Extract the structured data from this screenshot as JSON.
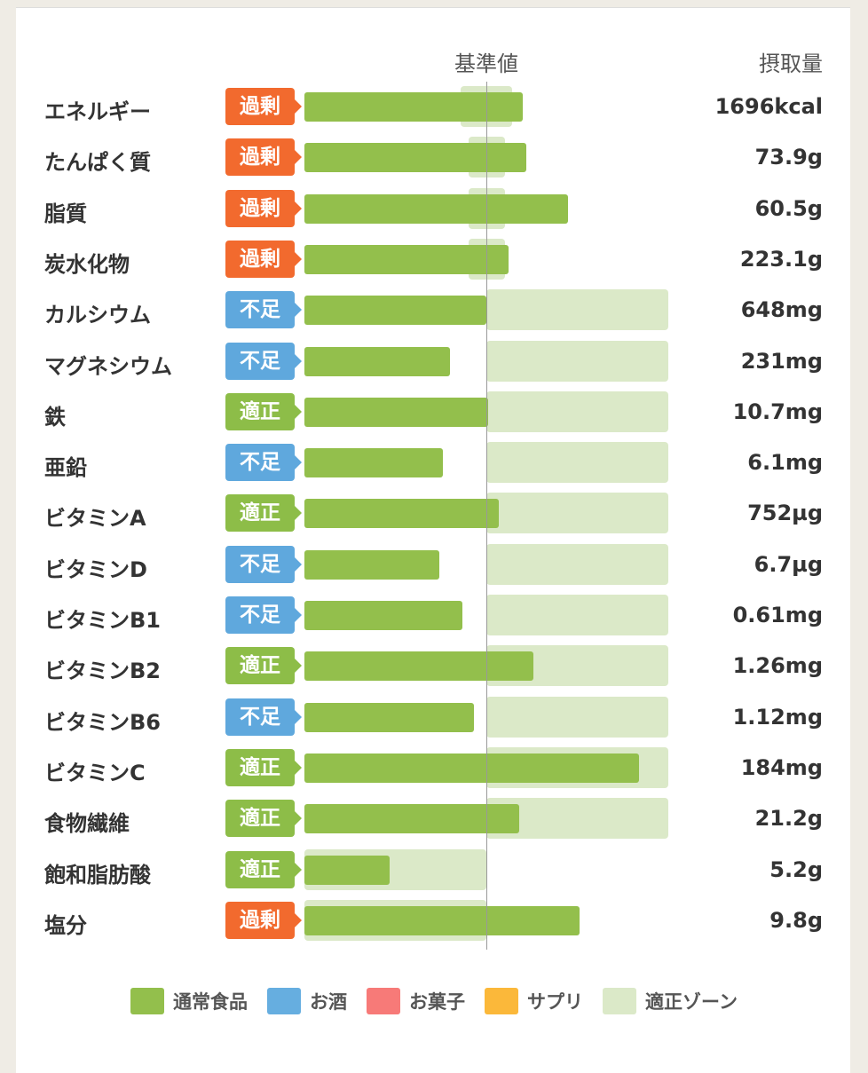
{
  "chart_data": {
    "type": "bar",
    "orientation": "horizontal",
    "unit": "percent of reference value",
    "reference_label": "基準値",
    "value_header": "摂取量",
    "reference_percent": 100,
    "xlim": [
      0,
      200
    ],
    "categories": [
      "エネルギー",
      "たんぱく質",
      "脂質",
      "炭水化物",
      "カルシウム",
      "マグネシウム",
      "鉄",
      "亜鉛",
      "ビタミンA",
      "ビタミンD",
      "ビタミンB1",
      "ビタミンB2",
      "ビタミンB6",
      "ビタミンC",
      "食物繊維",
      "飽和脂肪酸",
      "塩分"
    ],
    "status": [
      "過剰",
      "過剰",
      "過剰",
      "過剰",
      "不足",
      "不足",
      "適正",
      "不足",
      "適正",
      "不足",
      "不足",
      "適正",
      "不足",
      "適正",
      "適正",
      "適正",
      "過剰"
    ],
    "intake_labels": [
      "1696kcal",
      "73.9g",
      "60.5g",
      "223.1g",
      "648mg",
      "231mg",
      "10.7mg",
      "6.1mg",
      "752µg",
      "6.7µg",
      "0.61mg",
      "1.26mg",
      "1.12mg",
      "184mg",
      "21.2g",
      "5.2g",
      "9.8g"
    ],
    "series": [
      {
        "name": "通常食品",
        "color": "#93bf4c",
        "values": [
          120,
          122,
          145,
          112,
          100,
          80,
          101,
          76,
          107,
          74,
          87,
          126,
          93,
          184,
          118,
          47,
          151
        ]
      }
    ],
    "zones": [
      [
        86,
        114
      ],
      [
        90,
        110
      ],
      [
        90,
        110
      ],
      [
        90,
        110
      ],
      [
        100,
        200
      ],
      [
        100,
        200
      ],
      [
        100,
        200
      ],
      [
        100,
        200
      ],
      [
        100,
        200
      ],
      [
        100,
        200
      ],
      [
        100,
        200
      ],
      [
        100,
        200
      ],
      [
        100,
        200
      ],
      [
        100,
        200
      ],
      [
        100,
        200
      ],
      [
        0,
        100
      ],
      [
        0,
        100
      ]
    ],
    "status_colors": {
      "過剰": "#f26a2e",
      "不足": "#5fa8dd",
      "適正": "#8dbd48"
    },
    "legend": [
      {
        "label": "通常食品",
        "color": "#93bf4c"
      },
      {
        "label": "お酒",
        "color": "#66aee0"
      },
      {
        "label": "お菓子",
        "color": "#f77a78"
      },
      {
        "label": "サプリ",
        "color": "#fbb83a"
      },
      {
        "label": "適正ゾーン",
        "color": "#dbe9c8"
      }
    ]
  }
}
